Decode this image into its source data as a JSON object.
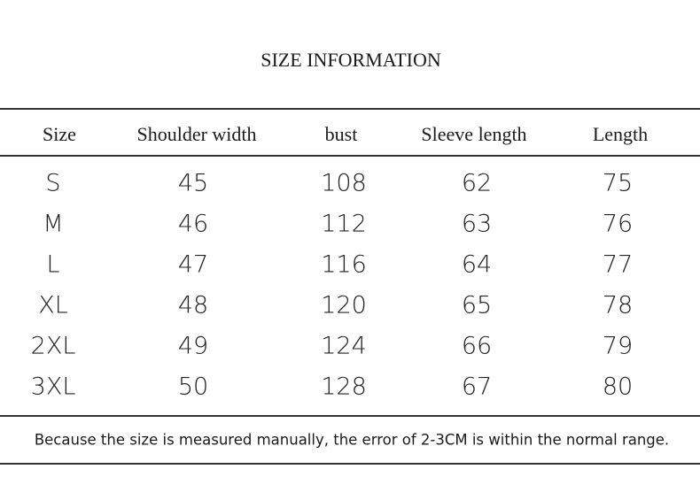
{
  "header": {
    "title": "SIZE INFORMATION"
  },
  "table": {
    "headers": [
      "Size",
      "Shoulder width",
      "bust",
      "Sleeve length",
      "Length"
    ],
    "rows": [
      [
        "S",
        45,
        108,
        62,
        75
      ],
      [
        "M",
        46,
        112,
        63,
        76
      ],
      [
        "L",
        47,
        116,
        64,
        77
      ],
      [
        "XL",
        48,
        120,
        65,
        78
      ],
      [
        "2XL",
        49,
        124,
        66,
        79
      ],
      [
        "3XL",
        50,
        128,
        67,
        80
      ]
    ]
  },
  "footer": {
    "note": "Because the size is measured manually, the error of 2-3CM is within the normal range."
  }
}
